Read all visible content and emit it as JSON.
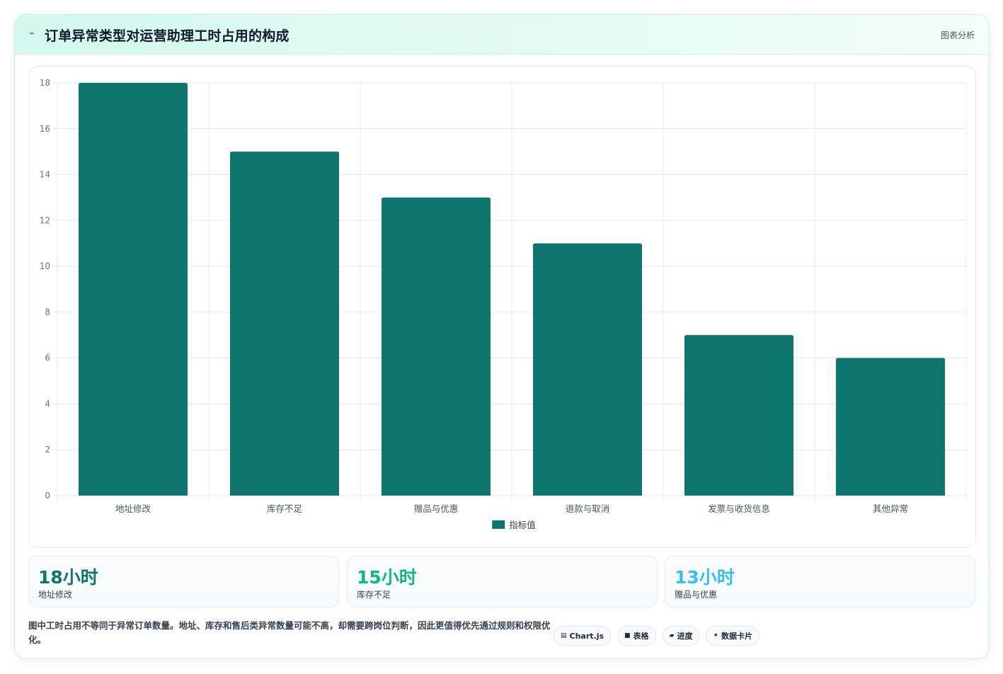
{
  "header": {
    "title": "订单异常类型对运营助理工时占用的构成",
    "tag": "图表分析",
    "icon": "lightning-icon"
  },
  "chart_data": {
    "type": "bar",
    "categories": [
      "地址修改",
      "库存不足",
      "赠品与优惠",
      "退款与取消",
      "发票与收货信息",
      "其他异常"
    ],
    "series": [
      {
        "name": "指标值",
        "values": [
          18,
          15,
          13,
          11,
          7,
          6
        ],
        "color": "#0f766e"
      }
    ],
    "yticks": [
      0,
      2,
      4,
      6,
      8,
      10,
      12,
      14,
      16,
      18
    ],
    "ylim": [
      0,
      18
    ],
    "grid": true,
    "legend": "bottom",
    "title": "",
    "xlabel": "",
    "ylabel": ""
  },
  "stats": [
    {
      "value": "18小时",
      "label": "地址修改",
      "color": "#0f766e"
    },
    {
      "value": "15小时",
      "label": "库存不足",
      "color": "#10b981"
    },
    {
      "value": "13小时",
      "label": "赠品与优惠",
      "color": "#38bdf8"
    }
  ],
  "footnote": "图中工时占用不等同于异常订单数量。地址、库存和售后类异常数量可能不高，却需要跨岗位判断，因此更值得优先通过规则和权限优化。",
  "chips": [
    {
      "icon": "chart-icon",
      "glyph": "▤",
      "label": "Chart.js"
    },
    {
      "icon": "table-icon",
      "glyph": "■",
      "label": "表格"
    },
    {
      "icon": "progress-icon",
      "glyph": "▰",
      "label": "进度"
    },
    {
      "icon": "sparkle-icon",
      "glyph": "✦",
      "label": "数据卡片"
    }
  ]
}
